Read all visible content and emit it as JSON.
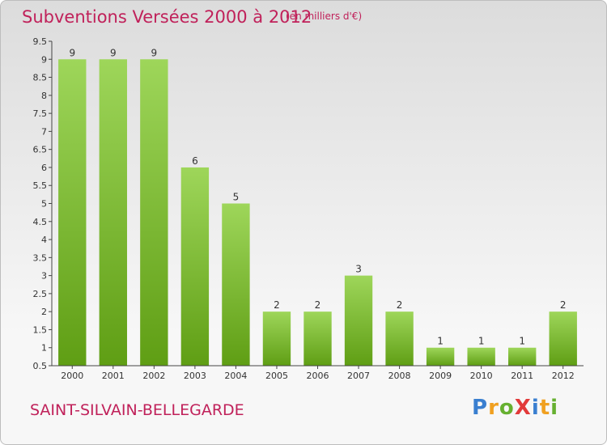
{
  "header": {
    "title": "Subventions Versées 2000 à 2012",
    "unit_note": "(en milliers d'€)"
  },
  "footer": {
    "commune": "SAINT-SILVAIN-BELLEGARDE",
    "logo": {
      "text": "ProXiti",
      "letter_colors": [
        "#3a7fd0",
        "#f0a020",
        "#66b030",
        "#e23a3a",
        "#3a7fd0",
        "#f0a020",
        "#66b030"
      ]
    }
  },
  "chart_data": {
    "type": "bar",
    "title": "Subventions Versées 2000 à 2012",
    "xlabel": "",
    "ylabel": "",
    "categories": [
      "2000",
      "2001",
      "2002",
      "2003",
      "2004",
      "2005",
      "2006",
      "2007",
      "2008",
      "2009",
      "2010",
      "2011",
      "2012"
    ],
    "values": [
      9,
      9,
      9,
      6,
      5,
      2,
      2,
      3,
      2,
      1,
      1,
      1,
      2
    ],
    "data_labels": [
      "9",
      "9",
      "9",
      "6",
      "5",
      "2",
      "2",
      "3",
      "2",
      "1",
      "1",
      "1",
      "2"
    ],
    "ylim": [
      0.5,
      9.5
    ],
    "yticks": [
      0.5,
      1,
      1.5,
      2,
      2.5,
      3,
      3.5,
      4,
      4.5,
      5,
      5.5,
      6,
      6.5,
      7,
      7.5,
      8,
      8.5,
      9,
      9.5
    ],
    "ytick_labels": [
      "0.5",
      "1",
      "1.5",
      "2",
      "2.5",
      "3",
      "3.5",
      "4",
      "4.5",
      "5",
      "5.5",
      "6",
      "6.5",
      "7",
      "7.5",
      "8",
      "8.5",
      "9",
      "9.5"
    ],
    "grid": false,
    "legend": "none",
    "colors": {
      "bar_top": "#9ed65a",
      "bar_bottom": "#5f9e14",
      "axis": "#444444",
      "text": "#333333"
    }
  }
}
